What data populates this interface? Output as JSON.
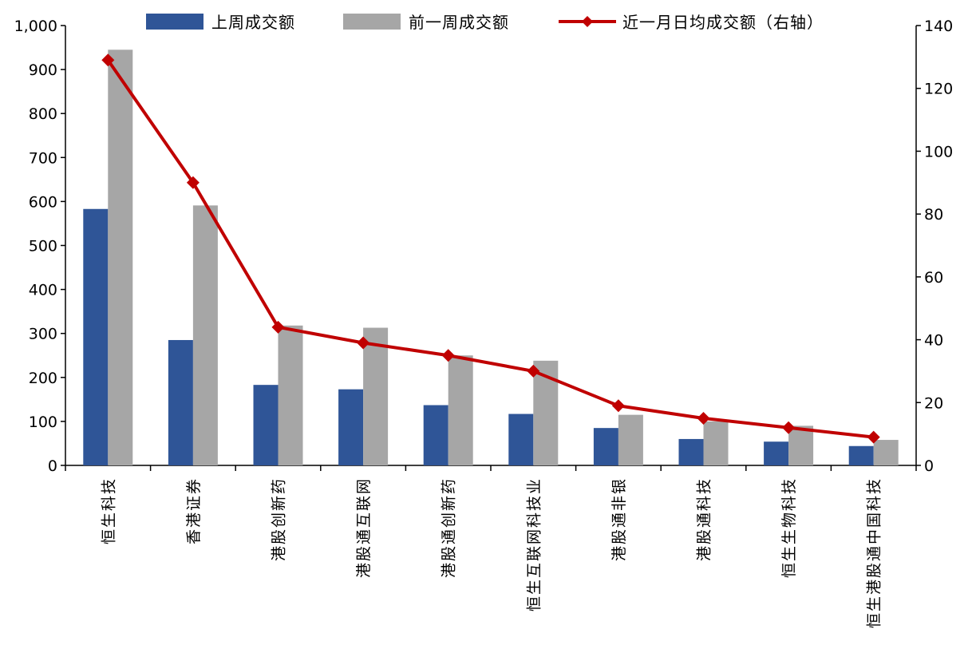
{
  "chart_data": {
    "type": "bar",
    "categories": [
      "恒生科技",
      "香港证券",
      "港股创新药",
      "港股通互联网",
      "港股通创新药",
      "恒生互联网科技业",
      "港股通非银",
      "港股通科技",
      "恒生生物科技",
      "恒生港股通中国科技"
    ],
    "series": [
      {
        "name": "上周成交额",
        "type": "bar",
        "axis": "left",
        "values": [
          583,
          285,
          183,
          173,
          137,
          117,
          85,
          60,
          54,
          44
        ]
      },
      {
        "name": "前一周成交额",
        "type": "bar",
        "axis": "left",
        "values": [
          945,
          591,
          318,
          313,
          250,
          238,
          115,
          100,
          90,
          58
        ]
      },
      {
        "name": "近一月日均成交额（右轴）",
        "type": "line",
        "axis": "right",
        "values": [
          129,
          90,
          44,
          39,
          35,
          30,
          19,
          15,
          12,
          9
        ]
      }
    ],
    "y_left": {
      "ticks": [
        "0",
        "100",
        "200",
        "300",
        "400",
        "500",
        "600",
        "700",
        "800",
        "900",
        "1,000"
      ],
      "ylim": [
        0,
        1000
      ]
    },
    "y_right": {
      "ticks": [
        "0",
        "20",
        "40",
        "60",
        "80",
        "100",
        "120",
        "140"
      ],
      "ylim": [
        0,
        140
      ]
    },
    "colors": {
      "bar1": "#2F5597",
      "bar2": "#A6A6A6",
      "line": "#C00000"
    },
    "legend": {
      "placement": "top-center",
      "labels": [
        "上周成交额",
        "前一周成交额",
        "近一月日均成交额（右轴）"
      ]
    },
    "grid": false
  }
}
